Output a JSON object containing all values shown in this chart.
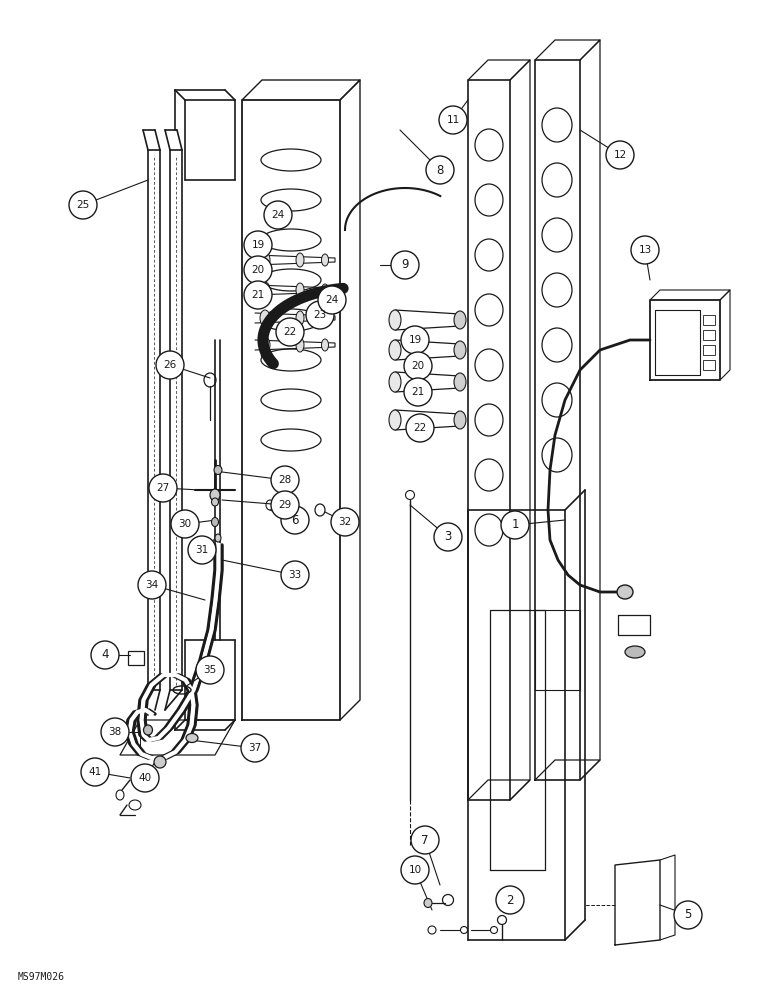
{
  "watermark": "MS97M026",
  "background_color": "#ffffff",
  "line_color": "#1a1a1a",
  "figsize": [
    7.72,
    10.0
  ],
  "dpi": 100
}
